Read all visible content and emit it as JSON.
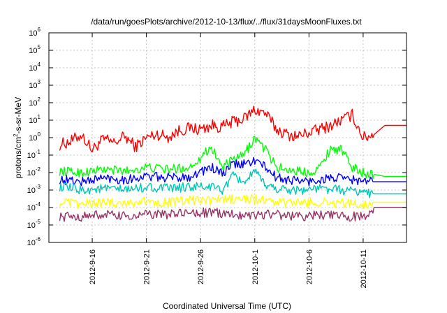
{
  "chart_data": {
    "type": "line",
    "title": "/data/run/goesPlots/archive/2012-10-13/flux/../flux/31daysMoonFluxes.txt",
    "xlabel": "Coordinated Universal Time (UTC)",
    "ylabel": "protons/cm2-s-sr-MeV",
    "yscale": "log",
    "ylim": [
      1e-06,
      1000000.0
    ],
    "xlim": [
      "2012-09-12",
      "2012-10-15"
    ],
    "grid": true,
    "legend": "none",
    "x_ticks": [
      "2012-9-16",
      "2012-9-21",
      "2012-9-26",
      "2012-10-1",
      "2012-10-6",
      "2012-10-11"
    ],
    "y_ticks": [
      {
        "value": 1e-06,
        "base": "10",
        "exp": "-6"
      },
      {
        "value": 1e-05,
        "base": "10",
        "exp": "-5"
      },
      {
        "value": 0.0001,
        "base": "10",
        "exp": "-4"
      },
      {
        "value": 0.001,
        "base": "10",
        "exp": "-3"
      },
      {
        "value": 0.01,
        "base": "10",
        "exp": "-2"
      },
      {
        "value": 0.1,
        "base": "10",
        "exp": "-1"
      },
      {
        "value": 1,
        "base": "10",
        "exp": "0"
      },
      {
        "value": 10.0,
        "base": "10",
        "exp": "1"
      },
      {
        "value": 100.0,
        "base": "10",
        "exp": "2"
      },
      {
        "value": 1000.0,
        "base": "10",
        "exp": "3"
      },
      {
        "value": 10000.0,
        "base": "10",
        "exp": "4"
      },
      {
        "value": 100000.0,
        "base": "10",
        "exp": "5"
      },
      {
        "value": 1000000.0,
        "base": "10",
        "exp": "6"
      }
    ],
    "series": [
      {
        "color": "#ff0000",
        "x": [
          "2012-09-13",
          "2012-09-14",
          "2012-09-15",
          "2012-09-16",
          "2012-09-17",
          "2012-09-18",
          "2012-09-19",
          "2012-09-20",
          "2012-09-21",
          "2012-09-22",
          "2012-09-23",
          "2012-09-24",
          "2012-09-25",
          "2012-09-26",
          "2012-09-27",
          "2012-09-28",
          "2012-09-29",
          "2012-09-30",
          "2012-10-01",
          "2012-10-02",
          "2012-10-03",
          "2012-10-04",
          "2012-10-05",
          "2012-10-06",
          "2012-10-07",
          "2012-10-08",
          "2012-10-09",
          "2012-10-10",
          "2012-10-11",
          "2012-10-12",
          "2012-10-13",
          "2012-10-14",
          "2012-10-15"
        ],
        "y": [
          0.4,
          0.6,
          1.5,
          0.2,
          0.8,
          0.5,
          1.2,
          0.3,
          1.0,
          1.6,
          1.1,
          2.5,
          3.5,
          3.0,
          5.0,
          4.0,
          8.0,
          12,
          40,
          25,
          3.0,
          1.5,
          1.2,
          2.0,
          3.0,
          5.0,
          10,
          20,
          1.0,
          1.5,
          5,
          5,
          5
        ]
      },
      {
        "color": "#00ff00",
        "x": [
          "2012-09-13",
          "2012-09-15",
          "2012-09-17",
          "2012-09-19",
          "2012-09-21",
          "2012-09-23",
          "2012-09-25",
          "2012-09-27",
          "2012-09-28",
          "2012-09-29",
          "2012-09-30",
          "2012-10-01",
          "2012-10-02",
          "2012-10-03",
          "2012-10-04",
          "2012-10-06",
          "2012-10-07",
          "2012-10-08",
          "2012-10-09",
          "2012-10-10",
          "2012-10-11",
          "2012-10-12",
          "2012-10-13",
          "2012-10-14",
          "2012-10-15"
        ],
        "y": [
          0.012,
          0.01,
          0.015,
          0.012,
          0.02,
          0.015,
          0.02,
          0.3,
          0.02,
          0.05,
          0.1,
          1.0,
          0.2,
          0.02,
          0.015,
          0.01,
          0.02,
          0.25,
          0.2,
          0.02,
          0.01,
          0.008,
          0.006,
          0.006,
          0.006
        ]
      },
      {
        "color": "#0000ff",
        "x": [
          "2012-09-13",
          "2012-09-15",
          "2012-09-17",
          "2012-09-19",
          "2012-09-21",
          "2012-09-23",
          "2012-09-25",
          "2012-09-27",
          "2012-09-28",
          "2012-09-29",
          "2012-09-30",
          "2012-10-01",
          "2012-10-02",
          "2012-10-03",
          "2012-10-04",
          "2012-10-06",
          "2012-10-08",
          "2012-10-10",
          "2012-10-11",
          "2012-10-12",
          "2012-10-13",
          "2012-10-14",
          "2012-10-15"
        ],
        "y": [
          0.004,
          0.003,
          0.005,
          0.004,
          0.006,
          0.005,
          0.006,
          0.02,
          0.008,
          0.03,
          0.03,
          0.05,
          0.02,
          0.005,
          0.004,
          0.003,
          0.005,
          0.004,
          0.003,
          0.003,
          0.003,
          0.003,
          0.003
        ]
      },
      {
        "color": "#00c8b4",
        "x": [
          "2012-09-13",
          "2012-09-15",
          "2012-09-17",
          "2012-09-19",
          "2012-09-21",
          "2012-09-23",
          "2012-09-25",
          "2012-09-27",
          "2012-09-28",
          "2012-09-29",
          "2012-09-30",
          "2012-10-01",
          "2012-10-02",
          "2012-10-03",
          "2012-10-05",
          "2012-10-07",
          "2012-10-09",
          "2012-10-11",
          "2012-10-12",
          "2012-10-13",
          "2012-10-14",
          "2012-10-15"
        ],
        "y": [
          0.0015,
          0.001,
          0.0012,
          0.001,
          0.0015,
          0.0012,
          0.0015,
          0.0015,
          0.001,
          0.006,
          0.003,
          0.01,
          0.002,
          0.0012,
          0.001,
          0.0012,
          0.001,
          0.0008,
          0.0006,
          0.0006,
          0.0006,
          0.0006
        ]
      },
      {
        "color": "#ffff00",
        "x": [
          "2012-09-13",
          "2012-09-15",
          "2012-09-17",
          "2012-09-19",
          "2012-09-21",
          "2012-09-23",
          "2012-09-25",
          "2012-09-27",
          "2012-09-29",
          "2012-10-01",
          "2012-10-03",
          "2012-10-05",
          "2012-10-07",
          "2012-10-09",
          "2012-10-11",
          "2012-10-12",
          "2012-10-13",
          "2012-10-14",
          "2012-10-15"
        ],
        "y": [
          0.0002,
          0.00015,
          0.0002,
          0.00018,
          0.00022,
          0.0002,
          0.00025,
          0.00025,
          0.0003,
          0.0003,
          0.0002,
          0.00018,
          0.0002,
          0.00018,
          0.00015,
          0.0002,
          0.0002,
          0.0002,
          0.0002
        ]
      },
      {
        "color": "#993366",
        "x": [
          "2012-09-13",
          "2012-09-15",
          "2012-09-17",
          "2012-09-19",
          "2012-09-21",
          "2012-09-23",
          "2012-09-25",
          "2012-09-27",
          "2012-09-29",
          "2012-10-01",
          "2012-10-03",
          "2012-10-05",
          "2012-10-07",
          "2012-10-09",
          "2012-10-11",
          "2012-10-12",
          "2012-10-13",
          "2012-10-14",
          "2012-10-15"
        ],
        "y": [
          3e-05,
          3e-05,
          4e-05,
          3e-05,
          4e-05,
          4e-05,
          5e-05,
          5e-05,
          4e-05,
          4e-05,
          4e-05,
          3e-05,
          4e-05,
          3e-05,
          3e-05,
          0.0001,
          0.0001,
          0.0001,
          0.0001
        ]
      }
    ]
  }
}
